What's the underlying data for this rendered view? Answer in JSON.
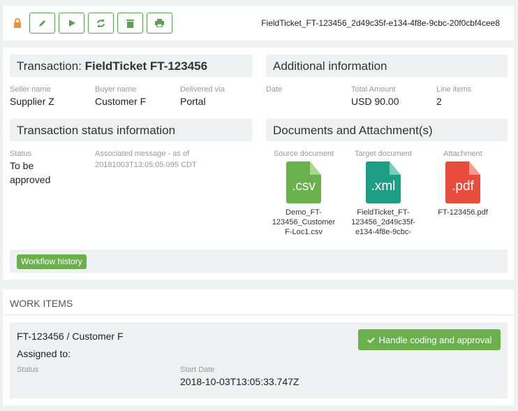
{
  "toolbar": {
    "icons": [
      "lock-icon",
      "pencil-icon",
      "play-icon",
      "refresh-icon",
      "trash-icon",
      "print-icon"
    ],
    "document_id": "FieldTicket_FT-123456_2d49c35f-e134-4f8e-9cbc-20f0cbf4cee8"
  },
  "transaction": {
    "title_prefix": "Transaction: ",
    "title_name": "FieldTicket FT-123456",
    "seller_label": "Seller name",
    "seller": "Supplier Z",
    "buyer_label": "Buyer name",
    "buyer": "Customer F",
    "delivered_label": "Delivered via",
    "delivered": "Portal"
  },
  "additional": {
    "title": "Additional information",
    "date_label": "Date",
    "amount_label": "Total Amount",
    "amount": "USD 90.00",
    "lines_label": "Line items",
    "lines": "2"
  },
  "status": {
    "title": "Transaction status information",
    "status_label": "Status",
    "status": "To be approved",
    "message_label": "Associated message - as of",
    "message_time": "20181003T13:05:05.095 CDT"
  },
  "documents": {
    "title": "Documents and Attachment(s)",
    "items": [
      {
        "label": "Source document",
        "ext": ".csv",
        "name": "Demo_FT-123456_Customer F-Loc1.csv",
        "color": "#6ab04c",
        "fold": "#a8d98a"
      },
      {
        "label": "Target document",
        "ext": ".xml",
        "name": "FieldTicket_FT-123456_2d49c35f-e134-4f8e-9cbc-",
        "color": "#1e9e84",
        "fold": "#79cfbd"
      },
      {
        "label": "Attachment",
        "ext": ".pdf",
        "name": "FT-123456.pdf",
        "color": "#e74c3c",
        "fold": "#f59a92"
      }
    ]
  },
  "workflow_button": "Workflow history",
  "work_items": {
    "title": "WORK ITEMS",
    "item_title": "FT-123456 / Customer F",
    "assigned_label": "Assigned to:",
    "status_label": "Status",
    "start_label": "Start Date",
    "start": "2018-10-03T13:05:33.747Z",
    "action": "Handle coding and approval"
  },
  "colors": {
    "accent": "#5aa155",
    "lock": "#f0923c"
  }
}
